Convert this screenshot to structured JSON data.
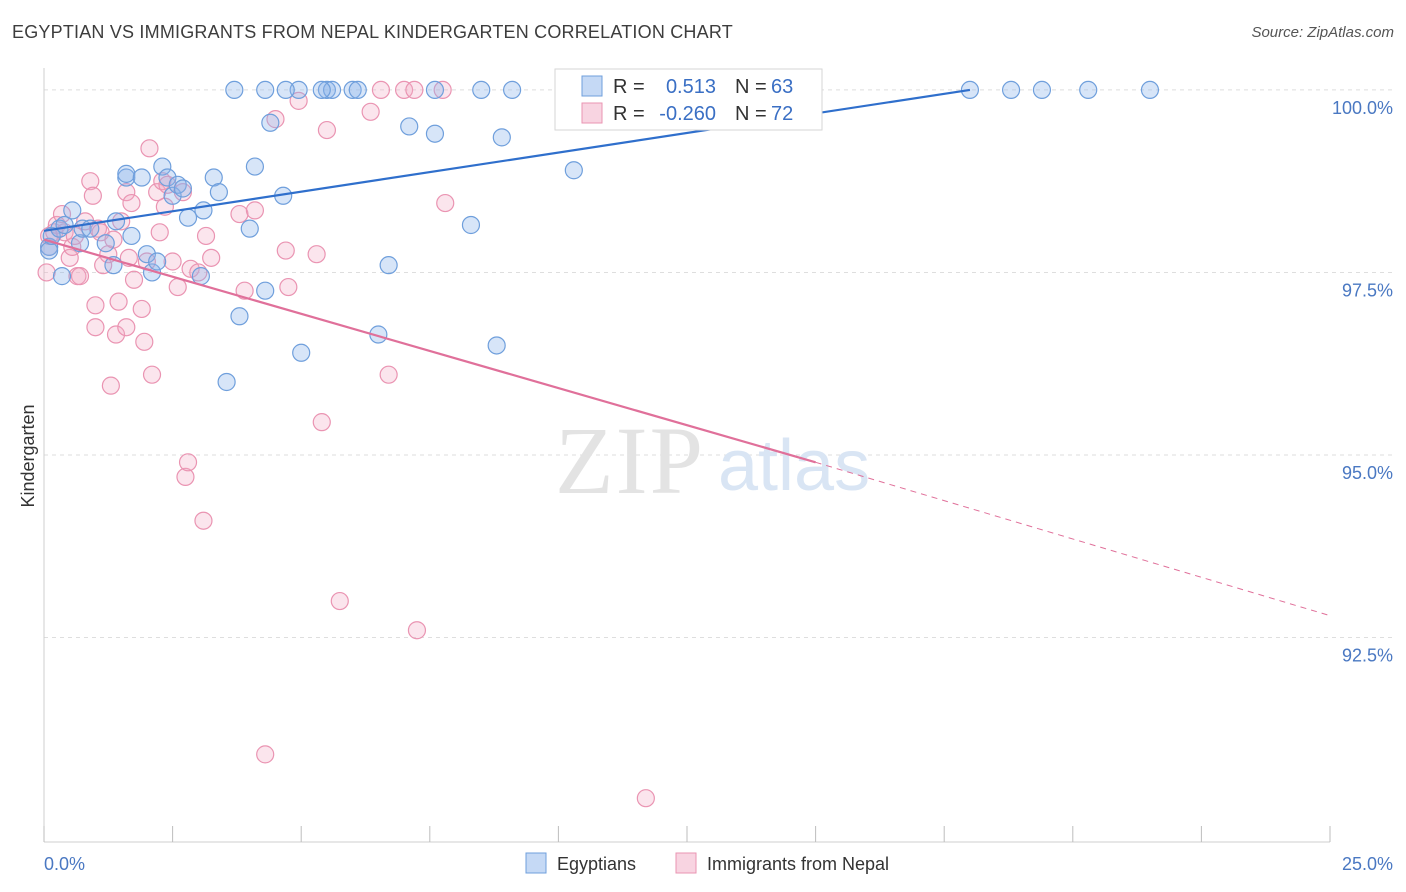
{
  "header": {
    "title": "EGYPTIAN VS IMMIGRANTS FROM NEPAL KINDERGARTEN CORRELATION CHART",
    "source": "Source: ZipAtlas.com"
  },
  "watermark": {
    "zip": "ZIP",
    "atlas": "atlas"
  },
  "colors": {
    "blue": "#6f9fdc",
    "blue_fill": "rgba(140,180,235,0.35)",
    "blue_line": "#2f6fcc",
    "pink": "#ea94b2",
    "pink_fill": "rgba(242,170,195,0.30)",
    "pink_line": "#e0709a",
    "grid": "#dedede",
    "tick_label": "#4a78c2"
  },
  "legend": {
    "r_label": "R =",
    "n_label": "N =",
    "rows": [
      {
        "r": "0.513",
        "n": "63"
      },
      {
        "r": "-0.260",
        "n": "72"
      }
    ]
  },
  "chart_data": {
    "type": "scatter",
    "title": "EGYPTIAN VS IMMIGRANTS FROM NEPAL KINDERGARTEN CORRELATION CHART",
    "xlabel": "",
    "ylabel": "Kindergarten",
    "xlim": [
      0,
      25
    ],
    "ylim": [
      89.7,
      100.3
    ],
    "x_tick_labels": [
      "0.0%",
      "25.0%"
    ],
    "y_ticks": [
      {
        "value": 100.0,
        "label": "100.0%"
      },
      {
        "value": 97.5,
        "label": "97.5%"
      },
      {
        "value": 95.0,
        "label": "95.0%"
      },
      {
        "value": 92.5,
        "label": "92.5%"
      }
    ],
    "series": [
      {
        "name": "Egyptians",
        "r": 0.513,
        "n": 63,
        "trend": {
          "x": [
            0.0,
            18.0
          ],
          "y": [
            98.07,
            100.0
          ]
        },
        "points": [
          [
            0.1,
            97.85
          ],
          [
            0.1,
            97.8
          ],
          [
            0.15,
            98.0
          ],
          [
            0.3,
            98.1
          ],
          [
            0.35,
            97.45
          ],
          [
            0.4,
            98.15
          ],
          [
            0.55,
            98.35
          ],
          [
            0.7,
            97.9
          ],
          [
            0.75,
            98.1
          ],
          [
            0.9,
            98.1
          ],
          [
            1.2,
            97.9
          ],
          [
            1.35,
            97.6
          ],
          [
            1.4,
            98.2
          ],
          [
            1.6,
            98.8
          ],
          [
            1.6,
            98.85
          ],
          [
            1.7,
            98.0
          ],
          [
            1.9,
            98.8
          ],
          [
            2.0,
            97.75
          ],
          [
            2.1,
            97.5
          ],
          [
            2.2,
            97.65
          ],
          [
            2.3,
            98.95
          ],
          [
            2.4,
            98.8
          ],
          [
            2.5,
            98.55
          ],
          [
            2.6,
            98.7
          ],
          [
            2.7,
            98.65
          ],
          [
            2.8,
            98.25
          ],
          [
            3.05,
            97.45
          ],
          [
            3.1,
            98.35
          ],
          [
            3.3,
            98.8
          ],
          [
            3.4,
            98.6
          ],
          [
            3.55,
            96.0
          ],
          [
            3.8,
            96.9
          ],
          [
            4.0,
            98.1
          ],
          [
            4.1,
            98.95
          ],
          [
            4.3,
            97.25
          ],
          [
            4.4,
            99.55
          ],
          [
            4.65,
            98.55
          ],
          [
            4.95,
            100.0
          ],
          [
            5.0,
            96.4
          ],
          [
            5.5,
            100.0
          ],
          [
            5.6,
            100.0
          ],
          [
            6.0,
            100.0
          ],
          [
            6.5,
            96.65
          ],
          [
            6.7,
            97.6
          ],
          [
            7.1,
            99.5
          ],
          [
            7.6,
            100.0
          ],
          [
            7.6,
            99.4
          ],
          [
            8.3,
            98.15
          ],
          [
            8.5,
            100.0
          ],
          [
            8.8,
            96.5
          ],
          [
            8.9,
            99.35
          ],
          [
            9.1,
            100.0
          ],
          [
            10.3,
            98.9
          ],
          [
            18.0,
            100.0
          ],
          [
            18.8,
            100.0
          ],
          [
            19.4,
            100.0
          ],
          [
            20.3,
            100.0
          ],
          [
            21.5,
            100.0
          ],
          [
            3.7,
            100.0
          ],
          [
            4.3,
            100.0
          ],
          [
            4.7,
            100.0
          ],
          [
            5.4,
            100.0
          ],
          [
            6.1,
            100.0
          ]
        ]
      },
      {
        "name": "Immigrants from Nepal",
        "r": -0.26,
        "n": 72,
        "trend": {
          "x": [
            0.0,
            15.0
          ],
          "y": [
            97.95,
            94.9
          ]
        },
        "trend_extension": {
          "x": [
            15.0,
            25.0
          ],
          "y": [
            94.9,
            92.8
          ]
        },
        "points": [
          [
            0.05,
            97.5
          ],
          [
            0.1,
            97.85
          ],
          [
            0.1,
            98.0
          ],
          [
            0.2,
            98.05
          ],
          [
            0.25,
            98.15
          ],
          [
            0.35,
            98.3
          ],
          [
            0.4,
            98.05
          ],
          [
            0.5,
            97.7
          ],
          [
            0.55,
            97.85
          ],
          [
            0.6,
            98.0
          ],
          [
            0.65,
            97.45
          ],
          [
            0.7,
            97.45
          ],
          [
            0.8,
            98.2
          ],
          [
            0.9,
            98.75
          ],
          [
            0.95,
            98.55
          ],
          [
            1.0,
            96.75
          ],
          [
            1.0,
            97.05
          ],
          [
            1.05,
            98.1
          ],
          [
            1.1,
            98.05
          ],
          [
            1.15,
            97.6
          ],
          [
            1.25,
            97.75
          ],
          [
            1.3,
            95.95
          ],
          [
            1.35,
            97.95
          ],
          [
            1.4,
            96.65
          ],
          [
            1.45,
            97.1
          ],
          [
            1.5,
            98.2
          ],
          [
            1.6,
            96.75
          ],
          [
            1.6,
            98.6
          ],
          [
            1.65,
            97.7
          ],
          [
            1.7,
            98.45
          ],
          [
            1.75,
            97.4
          ],
          [
            1.9,
            97.0
          ],
          [
            1.95,
            96.55
          ],
          [
            2.0,
            97.65
          ],
          [
            2.05,
            99.2
          ],
          [
            2.1,
            96.1
          ],
          [
            2.2,
            98.6
          ],
          [
            2.25,
            98.05
          ],
          [
            2.3,
            98.75
          ],
          [
            2.35,
            98.4
          ],
          [
            2.4,
            98.7
          ],
          [
            2.5,
            97.65
          ],
          [
            2.6,
            97.3
          ],
          [
            2.7,
            98.6
          ],
          [
            2.75,
            94.7
          ],
          [
            2.8,
            94.9
          ],
          [
            2.85,
            97.55
          ],
          [
            3.0,
            97.5
          ],
          [
            3.1,
            94.1
          ],
          [
            3.15,
            98.0
          ],
          [
            3.25,
            97.7
          ],
          [
            3.8,
            98.3
          ],
          [
            3.9,
            97.25
          ],
          [
            4.1,
            98.35
          ],
          [
            4.3,
            90.9
          ],
          [
            4.5,
            99.6
          ],
          [
            4.7,
            97.8
          ],
          [
            4.75,
            97.3
          ],
          [
            4.95,
            99.85
          ],
          [
            5.3,
            97.75
          ],
          [
            5.4,
            95.45
          ],
          [
            5.5,
            99.45
          ],
          [
            5.75,
            93.0
          ],
          [
            6.35,
            99.7
          ],
          [
            6.55,
            100.0
          ],
          [
            6.7,
            96.1
          ],
          [
            7.0,
            100.0
          ],
          [
            7.2,
            100.0
          ],
          [
            7.25,
            92.6
          ],
          [
            7.75,
            100.0
          ],
          [
            7.8,
            98.45
          ],
          [
            11.7,
            90.3
          ]
        ]
      }
    ]
  }
}
